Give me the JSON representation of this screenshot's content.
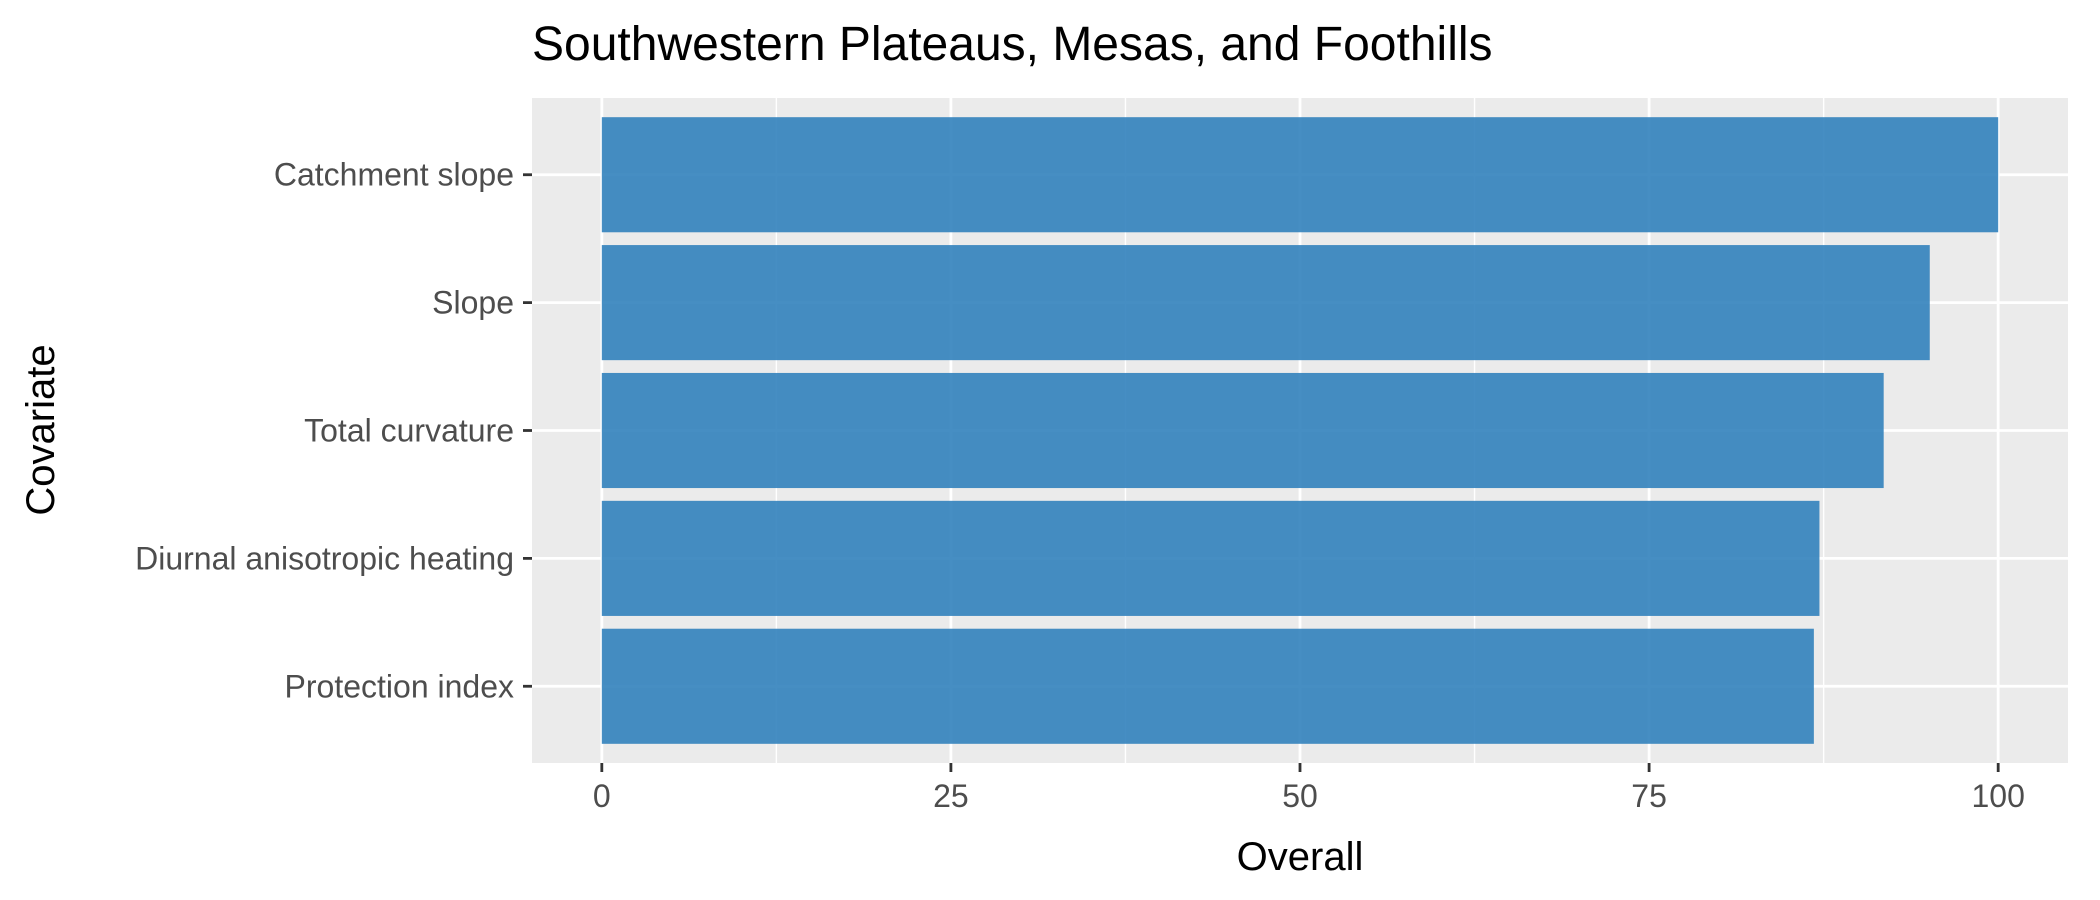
{
  "chart_data": {
    "type": "bar",
    "orientation": "horizontal",
    "title": "Southwestern Plateaus, Mesas, and Foothills",
    "xlabel": "Overall",
    "ylabel": "Covariate",
    "categories": [
      "Catchment slope",
      "Slope",
      "Total curvature",
      "Diurnal anisotropic heating",
      "Protection index"
    ],
    "values": [
      100,
      95.1,
      91.8,
      87.2,
      86.8
    ],
    "xlim": [
      -5,
      105
    ],
    "xticks": [
      0,
      25,
      50,
      75,
      100
    ],
    "xtick_labels": [
      "0",
      "25",
      "50",
      "75",
      "100"
    ],
    "grid": true,
    "legend": "none",
    "colors": {
      "bar": "#3282bd",
      "panel": "#ebebeb",
      "grid": "#ffffff"
    }
  }
}
